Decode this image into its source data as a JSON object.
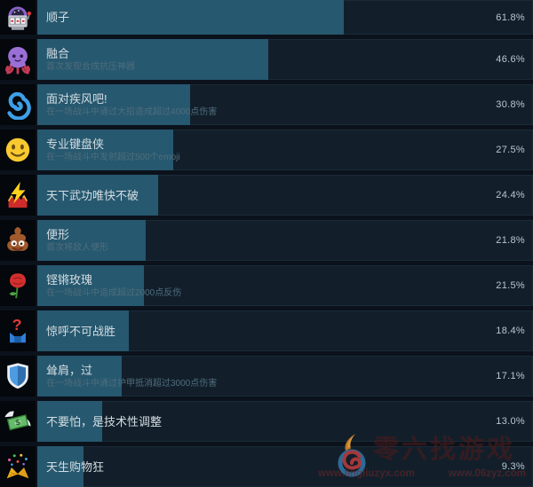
{
  "achievements": {
    "rows": [
      {
        "title": "顺子",
        "desc": "",
        "percent_label": "61.8%",
        "percent": 61.8,
        "icon": "slot-machine-icon"
      },
      {
        "title": "融合",
        "desc": "首次发现合成抗压神器",
        "percent_label": "46.6%",
        "percent": 46.6,
        "icon": "octopus-icon"
      },
      {
        "title": "面对疾风吧!",
        "desc": "在一场战斗中通过大招造成超过4000点伤害",
        "percent_label": "30.8%",
        "percent": 30.8,
        "icon": "cyclone-icon"
      },
      {
        "title": "专业键盘侠",
        "desc": "在一场战斗中发射超过500个emoji",
        "percent_label": "27.5%",
        "percent": 27.5,
        "icon": "smiley-icon"
      },
      {
        "title": "天下武功唯快不破",
        "desc": "",
        "percent_label": "24.4%",
        "percent": 24.4,
        "icon": "lightning-icon"
      },
      {
        "title": "便形",
        "desc": "首次将敌人便形",
        "percent_label": "21.8%",
        "percent": 21.8,
        "icon": "poop-icon"
      },
      {
        "title": "铿锵玫瑰",
        "desc": "在一场战斗中造成超过2000点反伤",
        "percent_label": "21.5%",
        "percent": 21.5,
        "icon": "rose-icon"
      },
      {
        "title": "惊呼不可战胜",
        "desc": "",
        "percent_label": "18.4%",
        "percent": 18.4,
        "icon": "question-box-icon"
      },
      {
        "title": "耸肩，过",
        "desc": "在一场战斗中通过护甲抵消超过3000点伤害",
        "percent_label": "17.1%",
        "percent": 17.1,
        "icon": "shield-icon"
      },
      {
        "title": "不要怕，是技术性调整",
        "desc": "",
        "percent_label": "13.0%",
        "percent": 13.0,
        "icon": "flying-money-icon"
      },
      {
        "title": "天生购物狂",
        "desc": "",
        "percent_label": "9.3%",
        "percent": 9.3,
        "icon": "confetti-icon"
      }
    ]
  },
  "watermark": {
    "site_name": "零六找游戏",
    "url_left": "www.lingliuzyx.com",
    "url_right": "www.06zyz.com"
  },
  "colors": {
    "bar_fill": "#26586f",
    "bar_background": "#121f2b",
    "page_background": "#0b121b",
    "title_text": "#d4dde2",
    "description_text": "#4f6d7c",
    "percent_text": "#b8c7d0"
  }
}
